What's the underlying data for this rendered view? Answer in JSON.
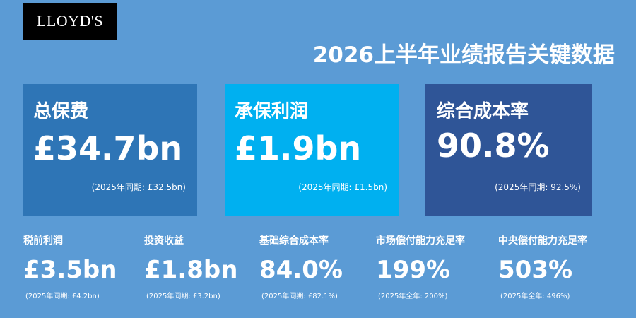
{
  "logo": {
    "text": "LLOYD'S"
  },
  "title": "2026上半年业绩报告关键数据",
  "colors": {
    "background": "#5b9bd5",
    "card_gwp": "#2e75b6",
    "card_profit": "#00b0f0",
    "card_ratio": "#2f5597"
  },
  "cards": [
    {
      "label": "总保费",
      "value": "£34.7bn",
      "prior": "(2025年同期: £32.5bn)"
    },
    {
      "label": "承保利润",
      "value": "£1.9bn",
      "prior": "(2025年同期: £1.5bn)"
    },
    {
      "label": "综合成本率",
      "value": "90.8%",
      "prior": "(2025年同期: 92.5%)"
    }
  ],
  "metrics": [
    {
      "label": "税前利润",
      "value": "£3.5bn",
      "prior": "(2025年同期: £4.2bn)"
    },
    {
      "label": "投资收益",
      "value": "£1.8bn",
      "prior": "(2025年同期: £3.2bn)"
    },
    {
      "label": "基础综合成本率",
      "value": "84.0%",
      "prior": "(2025年同期: £82.1%)"
    },
    {
      "label": "市场偿付能力充足率",
      "value": "199%",
      "prior": "(2025年全年: 200%)"
    },
    {
      "label": "中央偿付能力充足率",
      "value": "503%",
      "prior": "(2025年全年: 496%)"
    }
  ]
}
